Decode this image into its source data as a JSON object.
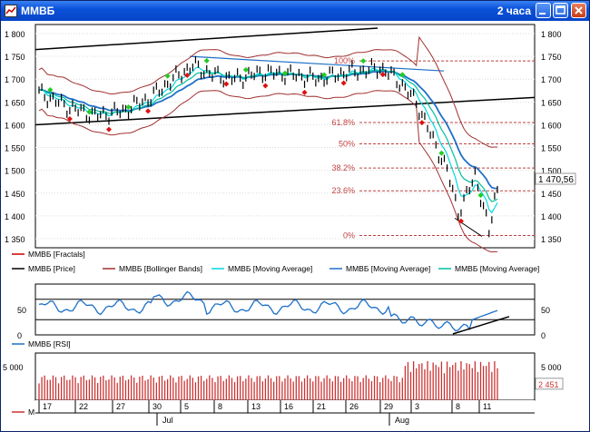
{
  "window": {
    "title": "ММВБ",
    "timeframe": "2 часа"
  },
  "chart_data": {
    "type": "line",
    "price_panel": {
      "y_ticks": [
        "1 800",
        "1 750",
        "1 700",
        "1 650",
        "1 600",
        "1 550",
        "1 500",
        "1 450",
        "1 400",
        "1 350"
      ],
      "y_tick_values": [
        1800,
        1750,
        1700,
        1650,
        1600,
        1550,
        1500,
        1450,
        1400,
        1350
      ],
      "ylim": [
        1330,
        1820
      ],
      "last_price_label": "1 470,56",
      "last_price": 1470.56,
      "fibonacci_levels": [
        {
          "label": "100%",
          "value": 1740
        },
        {
          "label": "61.8%",
          "value": 1605
        },
        {
          "label": "50%",
          "value": 1558
        },
        {
          "label": "38.2%",
          "value": 1505
        },
        {
          "label": "23.6%",
          "value": 1455
        },
        {
          "label": "0%",
          "value": 1357
        }
      ],
      "legend": [
        {
          "label": "ММВБ [Fractals]",
          "color": "#cc0000"
        },
        {
          "label": "ММВБ [Price]",
          "color": "#000000"
        },
        {
          "label": "ММВБ [Bollinger Bands]",
          "color": "#a03030"
        },
        {
          "label": "ММВБ [Moving Average]",
          "color": "#00d8e0"
        },
        {
          "label": "ММВБ [Moving Average]",
          "color": "#1e70c8"
        },
        {
          "label": "ММВБ [Moving Average]",
          "color": "#00c0a0"
        }
      ]
    },
    "rsi_panel": {
      "y_ticks": [
        "50",
        "0"
      ],
      "legend": {
        "label": "ММВБ [RSI]",
        "color": "#1e70c8"
      }
    },
    "volume_panel": {
      "y_tick": "5 000",
      "last_volume_label": "2 451",
      "last_volume": 2451,
      "legend": {
        "label": "MICEX [Volume]",
        "color": "#cc3333"
      }
    },
    "x_axis": {
      "day_labels": [
        "17",
        "22",
        "27",
        "30",
        "5",
        "8",
        "13",
        "16",
        "21",
        "26",
        "29",
        "3",
        "8",
        "11"
      ],
      "month_labels": [
        "Jul",
        "Aug"
      ]
    }
  }
}
